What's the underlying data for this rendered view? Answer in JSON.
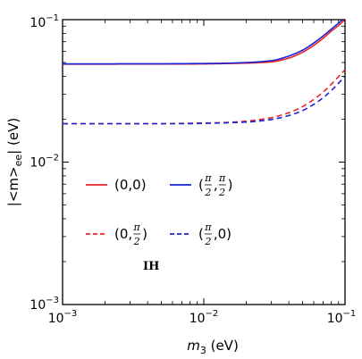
{
  "chart_data": {
    "type": "line",
    "xlabel": "m3 (eV)",
    "xlabel_base": "m",
    "xlabel_sub": "3",
    "xlabel_unit": " (eV)",
    "ylabel": "|<m>ee| (eV)",
    "ylabel_pre": "|<m>",
    "ylabel_sub": "ee",
    "ylabel_post": "| (eV)",
    "xscale": "log",
    "yscale": "log",
    "xlim": [
      0.001,
      0.1
    ],
    "ylim": [
      0.001,
      0.1
    ],
    "x_ticks": [
      {
        "base": "10",
        "exp": "−3"
      },
      {
        "base": "10",
        "exp": "−2"
      },
      {
        "base": "10",
        "exp": "−1"
      }
    ],
    "y_ticks": [
      {
        "base": "10",
        "exp": "−3"
      },
      {
        "base": "10",
        "exp": "−2"
      },
      {
        "base": "10",
        "exp": "−1"
      }
    ],
    "grid": false,
    "legend_placement": "center-left",
    "annotation": "IH",
    "x": [
      0.001,
      0.002,
      0.003,
      0.005,
      0.007,
      0.01,
      0.015,
      0.02,
      0.03,
      0.04,
      0.05,
      0.06,
      0.07,
      0.08,
      0.09,
      0.1
    ],
    "series": [
      {
        "name": "(0,0)",
        "legend_parts": [
          "(0,0)"
        ],
        "color": "#e8262b",
        "dash": "solid",
        "values": [
          0.0487,
          0.0487,
          0.0488,
          0.0488,
          0.0488,
          0.0489,
          0.0492,
          0.0495,
          0.0505,
          0.0537,
          0.059,
          0.066,
          0.074,
          0.083,
          0.091,
          0.1
        ]
      },
      {
        "name": "(π/2,π/2)",
        "legend_parts": [
          "(",
          "π",
          "2",
          ",",
          "π",
          "2",
          ")"
        ],
        "color": "#1a22d6",
        "dash": "solid",
        "values": [
          0.0489,
          0.0489,
          0.049,
          0.049,
          0.0491,
          0.0492,
          0.0495,
          0.05,
          0.0515,
          0.0555,
          0.061,
          0.0685,
          0.0768,
          0.0858,
          0.0945,
          0.103
        ]
      },
      {
        "name": "(0,π/2)",
        "legend_parts": [
          "(0,",
          "π",
          "2",
          ")"
        ],
        "color": "#e8262b",
        "dash": "dashed",
        "values": [
          0.0186,
          0.0186,
          0.0186,
          0.0186,
          0.0187,
          0.0188,
          0.019,
          0.0194,
          0.0205,
          0.0222,
          0.0245,
          0.0275,
          0.031,
          0.0352,
          0.0398,
          0.0445
        ]
      },
      {
        "name": "(π/2,0)",
        "legend_parts": [
          "(",
          "π",
          "2",
          ",0)"
        ],
        "color": "#1a22d6",
        "dash": "dashed",
        "values": [
          0.0186,
          0.0186,
          0.0186,
          0.0186,
          0.0186,
          0.0187,
          0.0189,
          0.0191,
          0.0199,
          0.0212,
          0.023,
          0.0254,
          0.0283,
          0.0318,
          0.0358,
          0.0401
        ]
      }
    ]
  }
}
